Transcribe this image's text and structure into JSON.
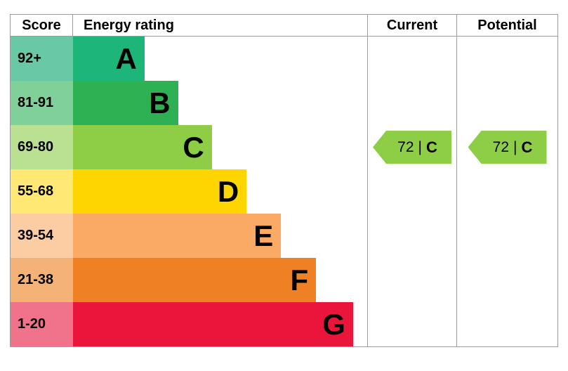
{
  "header": {
    "score": "Score",
    "energy_rating": "Energy rating",
    "current": "Current",
    "potential": "Potential"
  },
  "bands": [
    {
      "score": "92+",
      "letter": "A",
      "bar_color": "#1db578",
      "score_color": "#69c8a6",
      "width_pct": 24.3
    },
    {
      "score": "81-91",
      "letter": "B",
      "bar_color": "#2eb152",
      "score_color": "#7fd099",
      "width_pct": 35.7
    },
    {
      "score": "69-80",
      "letter": "C",
      "bar_color": "#8dce46",
      "score_color": "#b9e191",
      "width_pct": 47.2
    },
    {
      "score": "55-68",
      "letter": "D",
      "bar_color": "#ffd500",
      "score_color": "#ffe873",
      "width_pct": 59.0
    },
    {
      "score": "39-54",
      "letter": "E",
      "bar_color": "#fbaa65",
      "score_color": "#fccda3",
      "width_pct": 70.7
    },
    {
      "score": "21-38",
      "letter": "F",
      "bar_color": "#ef8023",
      "score_color": "#f5b277",
      "width_pct": 82.6
    },
    {
      "score": "1-20",
      "letter": "G",
      "bar_color": "#e9153b",
      "score_color": "#f1738b",
      "width_pct": 95.2
    }
  ],
  "arrows": {
    "current": {
      "value": "72",
      "divider": "|",
      "letter": "C",
      "color": "#8dce46"
    },
    "potential": {
      "value": "72",
      "divider": "|",
      "letter": "C",
      "color": "#8dce46"
    }
  },
  "chart_data": {
    "type": "bar",
    "title": "Energy rating",
    "categories": [
      "A",
      "B",
      "C",
      "D",
      "E",
      "F",
      "G"
    ],
    "score_ranges": [
      "92+",
      "81-91",
      "69-80",
      "55-68",
      "39-54",
      "21-38",
      "1-20"
    ],
    "bar_lengths_pct_of_column": [
      24.3,
      35.7,
      47.2,
      59.0,
      70.7,
      82.6,
      95.2
    ],
    "band_colors": [
      "#1db578",
      "#2eb152",
      "#8dce46",
      "#ffd500",
      "#fbaa65",
      "#ef8023",
      "#e9153b"
    ],
    "current": {
      "score": 72,
      "rating": "C"
    },
    "potential": {
      "score": 72,
      "rating": "C"
    },
    "legend_position": "none",
    "grid": false
  }
}
